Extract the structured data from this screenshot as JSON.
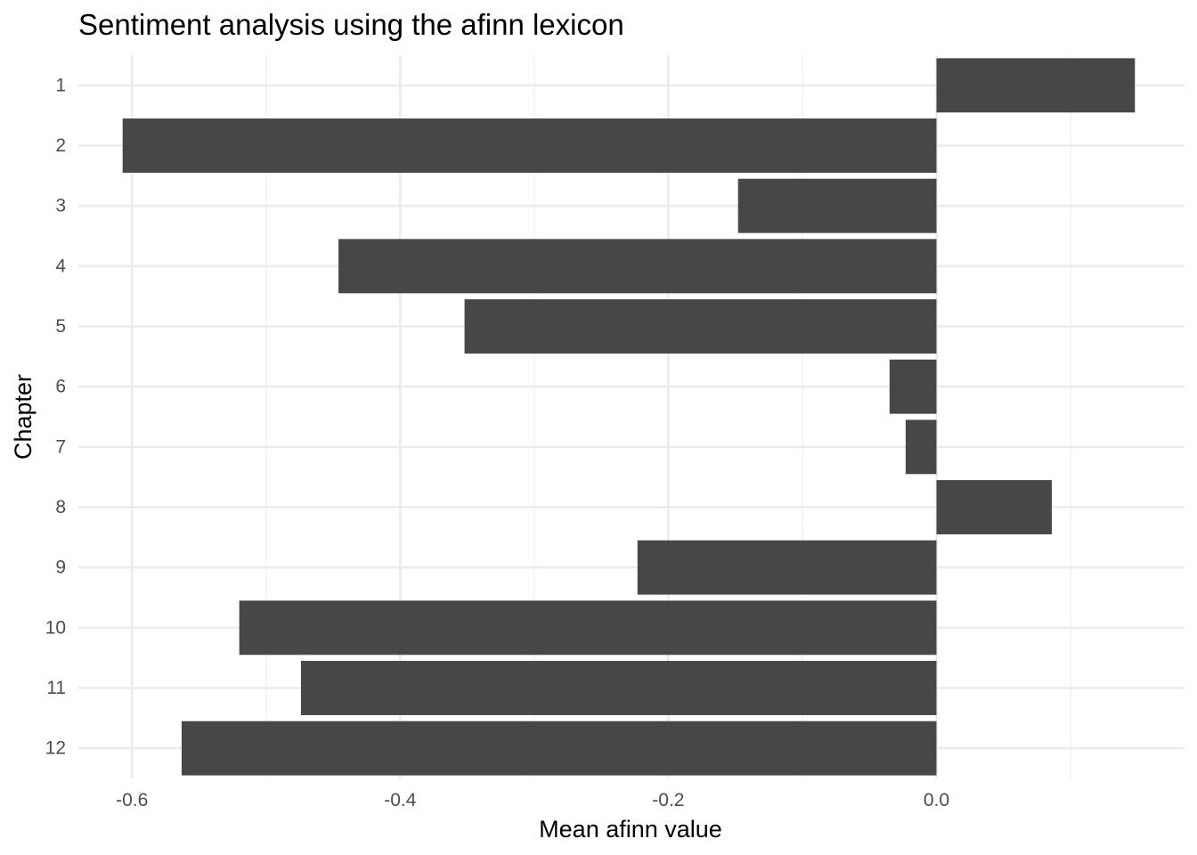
{
  "chart_data": {
    "type": "bar",
    "orientation": "horizontal",
    "title": "Sentiment analysis using the afinn lexicon",
    "xlabel": "Mean afinn value",
    "ylabel": "Chapter",
    "categories": [
      "1",
      "2",
      "3",
      "4",
      "5",
      "6",
      "7",
      "8",
      "9",
      "10",
      "11",
      "12"
    ],
    "values": [
      0.148,
      -0.607,
      -0.148,
      -0.446,
      -0.352,
      -0.035,
      -0.023,
      0.086,
      -0.223,
      -0.52,
      -0.474,
      -0.563
    ],
    "xlim": [
      -0.64,
      0.185
    ],
    "x_ticks": [
      -0.6,
      -0.4,
      -0.2,
      0.0
    ],
    "x_tick_labels": [
      "-0.6",
      "-0.4",
      "-0.2",
      "0.0"
    ],
    "bar_color": "#474747",
    "grid": true,
    "legend": "none",
    "theme_colors": {
      "grid_major": "#ebebeb",
      "grid_minor": "#f2f2f2",
      "text": "#4d4d4d"
    }
  }
}
